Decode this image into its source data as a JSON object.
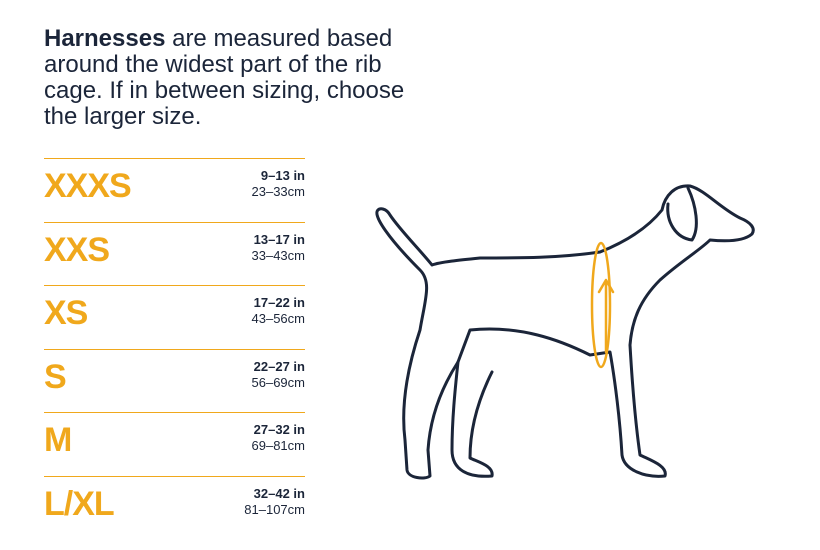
{
  "intro": {
    "bold": "Harnesses",
    "text": " are measured based around the widest part of the rib cage. If in between sizing, choose the larger size."
  },
  "sizes": [
    {
      "label": "XXXS",
      "inches": "9–13 in",
      "cm": "23–33cm"
    },
    {
      "label": "XXS",
      "inches": "13–17 in",
      "cm": "33–43cm"
    },
    {
      "label": "XS",
      "inches": "17–22 in",
      "cm": "43–56cm"
    },
    {
      "label": "S",
      "inches": "22–27 in",
      "cm": "56–69cm"
    },
    {
      "label": "M",
      "inches": "27–32 in",
      "cm": "69–81cm"
    },
    {
      "label": "L/XL",
      "inches": "32–42 in",
      "cm": "81–107cm"
    }
  ]
}
